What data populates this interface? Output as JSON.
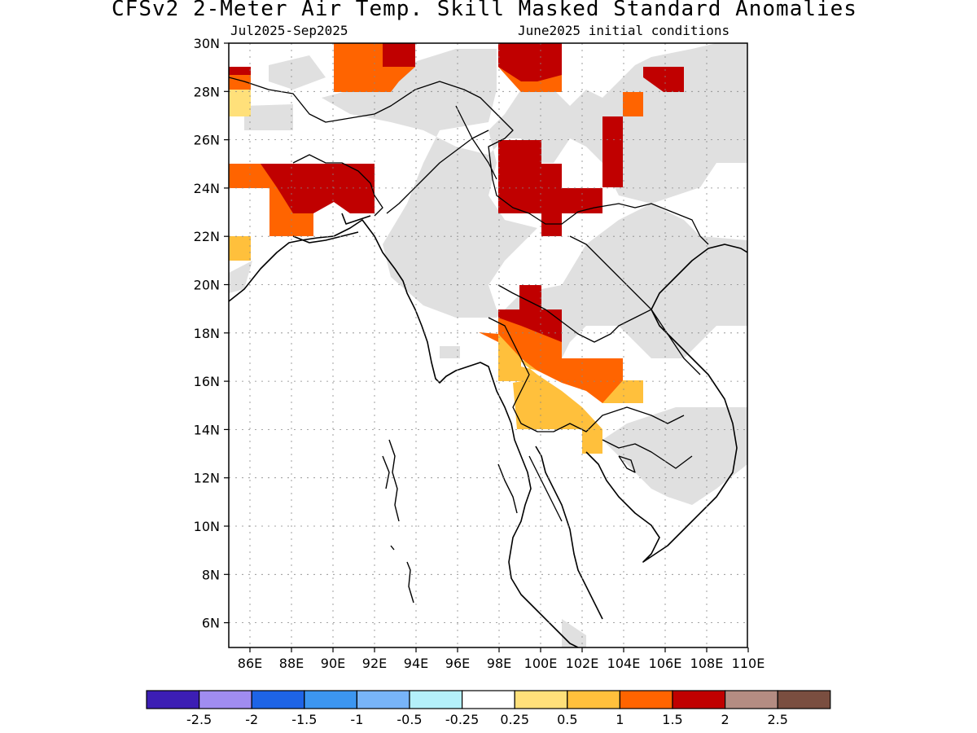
{
  "header": {
    "title": "CFSv2 2-Meter Air Temp. Skill Masked Standard Anomalies",
    "period": "Jul2025-Sep2025",
    "initial_conditions": "June2025 initial conditions"
  },
  "map": {
    "lat_labels": [
      "30N",
      "28N",
      "26N",
      "24N",
      "22N",
      "20N",
      "18N",
      "16N",
      "14N",
      "12N",
      "10N",
      "8N",
      "6N"
    ],
    "lon_labels": [
      "86E",
      "88E",
      "90E",
      "92E",
      "94E",
      "96E",
      "98E",
      "100E",
      "102E",
      "104E",
      "106E",
      "108E",
      "110E"
    ],
    "colors": {
      "mask": "#e0e0e0",
      "c1": "#ffe07a",
      "c2": "#ffc03c",
      "c3": "#ff6400",
      "c4": "#c00000",
      "coast": "#000000"
    }
  },
  "colorbar": {
    "colors": [
      "#3c1eb4",
      "#a08cf0",
      "#1e64e6",
      "#3c96f0",
      "#78b4f8",
      "#b4f0fa",
      "#ffffff",
      "#ffe07a",
      "#ffc03c",
      "#ff6400",
      "#c00000",
      "#b48c82",
      "#7a4e40"
    ],
    "labels": [
      "-2.5",
      "-2",
      "-1.5",
      "-1",
      "-0.5",
      "-0.25",
      "0.25",
      "0.5",
      "1",
      "1.5",
      "2",
      "2.5"
    ]
  }
}
